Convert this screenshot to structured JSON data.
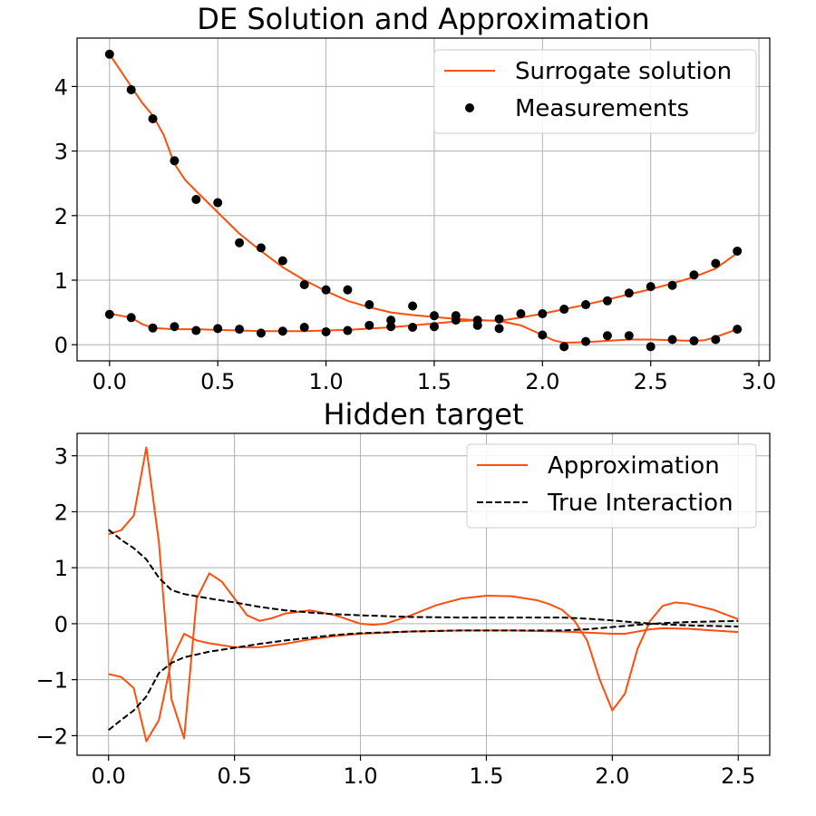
{
  "chart_data": [
    {
      "type": "line",
      "title": "DE Solution and Approximation",
      "xlabel": "",
      "ylabel": "",
      "xlim": [
        -0.15,
        3.05
      ],
      "ylim": [
        -0.25,
        4.75
      ],
      "xticks": [
        0.0,
        0.5,
        1.0,
        1.5,
        2.0,
        2.5,
        3.0
      ],
      "xtick_labels": [
        "0.0",
        "0.5",
        "1.0",
        "1.5",
        "2.0",
        "2.5",
        "3.0"
      ],
      "yticks": [
        0,
        1,
        2,
        3,
        4
      ],
      "ytick_labels": [
        "0",
        "1",
        "2",
        "3",
        "4"
      ],
      "grid": true,
      "legend_position": "top-right",
      "legend": [
        {
          "label": "Surrogate solution",
          "kind": "line",
          "color": "#ff4f0f"
        },
        {
          "label": "Measurements",
          "kind": "marker",
          "color": "#000000"
        }
      ],
      "series": [
        {
          "name": "Surrogate solution",
          "kind": "line",
          "color": "#ff4f0f",
          "x": [
            0.0,
            0.1,
            0.15,
            0.2,
            0.25,
            0.3,
            0.35,
            0.4,
            0.5,
            0.6,
            0.7,
            0.8,
            0.9,
            1.0,
            1.1,
            1.2,
            1.3,
            1.4,
            1.5,
            1.6,
            1.7,
            1.8,
            1.9,
            2.0,
            2.1,
            2.2,
            2.3,
            2.4,
            2.5,
            2.6,
            2.7,
            2.8,
            2.85,
            2.9
          ],
          "y": [
            4.5,
            4.0,
            3.75,
            3.55,
            3.25,
            2.8,
            2.55,
            2.38,
            2.05,
            1.72,
            1.45,
            1.2,
            1.0,
            0.83,
            0.68,
            0.58,
            0.5,
            0.46,
            0.43,
            0.4,
            0.38,
            0.37,
            0.42,
            0.48,
            0.55,
            0.62,
            0.7,
            0.78,
            0.86,
            0.95,
            1.05,
            1.18,
            1.3,
            1.42
          ]
        },
        {
          "name": "Surrogate solution",
          "kind": "line",
          "color": "#ff4f0f",
          "x": [
            0.0,
            0.1,
            0.15,
            0.2,
            0.3,
            0.4,
            0.5,
            0.6,
            0.7,
            0.8,
            0.9,
            1.0,
            1.1,
            1.2,
            1.3,
            1.4,
            1.5,
            1.6,
            1.7,
            1.8,
            1.9,
            2.0,
            2.05,
            2.1,
            2.2,
            2.3,
            2.4,
            2.5,
            2.6,
            2.7,
            2.75,
            2.8,
            2.85,
            2.9
          ],
          "y": [
            0.48,
            0.42,
            0.32,
            0.26,
            0.24,
            0.24,
            0.23,
            0.22,
            0.21,
            0.21,
            0.21,
            0.22,
            0.23,
            0.25,
            0.27,
            0.3,
            0.33,
            0.36,
            0.38,
            0.37,
            0.3,
            0.15,
            0.07,
            0.03,
            0.04,
            0.06,
            0.08,
            0.08,
            0.07,
            0.06,
            0.07,
            0.12,
            0.18,
            0.24
          ]
        },
        {
          "name": "Measurements",
          "kind": "scatter",
          "color": "#000000",
          "x": [
            0.0,
            0.1,
            0.2,
            0.3,
            0.4,
            0.5,
            0.6,
            0.7,
            0.8,
            0.9,
            1.0,
            1.1,
            1.2,
            1.3,
            1.4,
            1.5,
            1.6,
            1.7,
            1.8,
            1.9,
            2.0,
            2.1,
            2.2,
            2.3,
            2.4,
            2.5,
            2.6,
            2.7,
            2.8,
            2.9
          ],
          "y": [
            4.5,
            3.95,
            3.5,
            2.85,
            2.25,
            2.2,
            1.58,
            1.5,
            1.3,
            0.93,
            0.85,
            0.85,
            0.62,
            0.38,
            0.6,
            0.45,
            0.45,
            0.38,
            0.4,
            0.48,
            0.48,
            0.55,
            0.62,
            0.68,
            0.8,
            0.9,
            0.92,
            1.08,
            1.26,
            1.45
          ]
        },
        {
          "name": "Measurements",
          "kind": "scatter",
          "color": "#000000",
          "x": [
            0.0,
            0.1,
            0.2,
            0.3,
            0.4,
            0.5,
            0.6,
            0.7,
            0.8,
            0.9,
            1.0,
            1.1,
            1.2,
            1.3,
            1.4,
            1.5,
            1.6,
            1.7,
            1.8,
            2.0,
            2.1,
            2.2,
            2.3,
            2.4,
            2.5,
            2.6,
            2.7,
            2.8,
            2.9
          ],
          "y": [
            0.47,
            0.42,
            0.26,
            0.28,
            0.22,
            0.25,
            0.24,
            0.18,
            0.21,
            0.27,
            0.2,
            0.22,
            0.3,
            0.28,
            0.27,
            0.28,
            0.38,
            0.3,
            0.25,
            0.15,
            -0.03,
            0.05,
            0.14,
            0.14,
            -0.03,
            0.08,
            0.06,
            0.08,
            0.24
          ]
        }
      ]
    },
    {
      "type": "line",
      "title": "Hidden target",
      "xlabel": "",
      "ylabel": "",
      "xlim": [
        -0.125,
        2.625
      ],
      "ylim": [
        -2.35,
        3.4
      ],
      "xticks": [
        0.0,
        0.5,
        1.0,
        1.5,
        2.0,
        2.5
      ],
      "xtick_labels": [
        "0.0",
        "0.5",
        "1.0",
        "1.5",
        "2.0",
        "2.5"
      ],
      "yticks": [
        -2,
        -1,
        0,
        1,
        2,
        3
      ],
      "ytick_labels": [
        "−2",
        "−1",
        "0",
        "1",
        "2",
        "3"
      ],
      "grid": true,
      "legend_position": "top-right",
      "legend": [
        {
          "label": "Approximation",
          "kind": "line",
          "color": "#ff4f0f"
        },
        {
          "label": "True Interaction",
          "kind": "dashed",
          "color": "#000000"
        }
      ],
      "series": [
        {
          "name": "Approximation",
          "kind": "line",
          "color": "#ff4f0f",
          "x": [
            0.0,
            0.05,
            0.1,
            0.15,
            0.2,
            0.25,
            0.3,
            0.35,
            0.4,
            0.45,
            0.5,
            0.55,
            0.6,
            0.65,
            0.7,
            0.8,
            0.9,
            1.0,
            1.05,
            1.1,
            1.2,
            1.3,
            1.4,
            1.5,
            1.6,
            1.7,
            1.75,
            1.8,
            1.85,
            1.9,
            1.95,
            2.0,
            2.05,
            2.1,
            2.15,
            2.2,
            2.25,
            2.3,
            2.4,
            2.5
          ],
          "y": [
            1.6,
            1.67,
            1.93,
            3.15,
            1.45,
            -1.35,
            -2.05,
            0.45,
            0.9,
            0.75,
            0.45,
            0.15,
            0.05,
            0.1,
            0.18,
            0.24,
            0.15,
            0.0,
            -0.02,
            0.0,
            0.15,
            0.33,
            0.45,
            0.5,
            0.49,
            0.42,
            0.35,
            0.25,
            0.05,
            -0.3,
            -1.0,
            -1.55,
            -1.25,
            -0.45,
            0.05,
            0.32,
            0.38,
            0.36,
            0.25,
            0.08
          ]
        },
        {
          "name": "Approximation",
          "kind": "line",
          "color": "#ff4f0f",
          "x": [
            0.0,
            0.05,
            0.1,
            0.15,
            0.2,
            0.25,
            0.3,
            0.35,
            0.4,
            0.5,
            0.6,
            0.7,
            0.8,
            0.9,
            1.0,
            1.2,
            1.4,
            1.6,
            1.8,
            1.9,
            2.0,
            2.05,
            2.1,
            2.15,
            2.2,
            2.3,
            2.4,
            2.5
          ],
          "y": [
            -0.9,
            -0.95,
            -1.15,
            -2.1,
            -1.72,
            -0.65,
            -0.18,
            -0.3,
            -0.35,
            -0.42,
            -0.42,
            -0.36,
            -0.28,
            -0.22,
            -0.18,
            -0.14,
            -0.12,
            -0.12,
            -0.14,
            -0.16,
            -0.18,
            -0.18,
            -0.14,
            -0.1,
            -0.08,
            -0.09,
            -0.12,
            -0.15
          ]
        },
        {
          "name": "True Interaction",
          "kind": "dashed",
          "color": "#000000",
          "x": [
            0.0,
            0.05,
            0.1,
            0.15,
            0.2,
            0.25,
            0.3,
            0.4,
            0.5,
            0.6,
            0.7,
            0.8,
            0.9,
            1.0,
            1.2,
            1.4,
            1.6,
            1.8,
            1.9,
            2.0,
            2.1,
            2.2,
            2.3,
            2.4,
            2.5
          ],
          "y": [
            1.68,
            1.5,
            1.35,
            1.15,
            0.82,
            0.6,
            0.53,
            0.45,
            0.38,
            0.3,
            0.24,
            0.2,
            0.17,
            0.15,
            0.12,
            0.11,
            0.11,
            0.11,
            0.09,
            0.06,
            0.02,
            -0.01,
            -0.03,
            -0.04,
            -0.05
          ]
        },
        {
          "name": "True Interaction",
          "kind": "dashed",
          "color": "#000000",
          "x": [
            0.0,
            0.05,
            0.1,
            0.15,
            0.2,
            0.25,
            0.3,
            0.4,
            0.5,
            0.6,
            0.7,
            0.8,
            0.9,
            1.0,
            1.2,
            1.4,
            1.6,
            1.8,
            1.9,
            2.0,
            2.1,
            2.2,
            2.3,
            2.4,
            2.5
          ],
          "y": [
            -1.9,
            -1.72,
            -1.55,
            -1.3,
            -0.88,
            -0.7,
            -0.6,
            -0.5,
            -0.43,
            -0.36,
            -0.3,
            -0.25,
            -0.2,
            -0.17,
            -0.14,
            -0.12,
            -0.12,
            -0.12,
            -0.1,
            -0.06,
            -0.02,
            0.01,
            0.03,
            0.04,
            0.05
          ]
        }
      ]
    }
  ]
}
